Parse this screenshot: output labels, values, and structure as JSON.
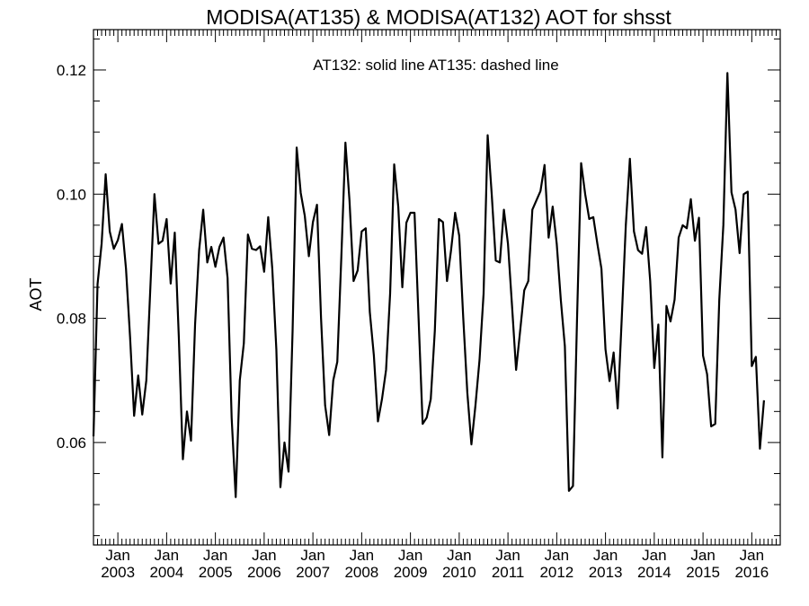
{
  "chart_data": {
    "type": "line",
    "title": "MODISA(AT135) & MODISA(AT132)  AOT for shsst",
    "annotation": "AT132: solid line   AT135: dashed line",
    "xlabel": "",
    "ylabel": "AOT",
    "xlim": [
      "2002-07",
      "2016-08"
    ],
    "ylim": [
      0.0435,
      0.1265
    ],
    "y_ticks": [
      0.06,
      0.08,
      0.1,
      0.12
    ],
    "y_tick_labels": [
      "0.06",
      "0.08",
      "0.10",
      "0.12"
    ],
    "x_tick_labels": [
      {
        "month": "Jan",
        "year": "2003"
      },
      {
        "month": "Jan",
        "year": "2004"
      },
      {
        "month": "Jan",
        "year": "2005"
      },
      {
        "month": "Jan",
        "year": "2006"
      },
      {
        "month": "Jan",
        "year": "2007"
      },
      {
        "month": "Jan",
        "year": "2008"
      },
      {
        "month": "Jan",
        "year": "2009"
      },
      {
        "month": "Jan",
        "year": "2010"
      },
      {
        "month": "Jan",
        "year": "2011"
      },
      {
        "month": "Jan",
        "year": "2012"
      },
      {
        "month": "Jan",
        "year": "2013"
      },
      {
        "month": "Jan",
        "year": "2014"
      },
      {
        "month": "Jan",
        "year": "2015"
      },
      {
        "month": "Jan",
        "year": "2016"
      }
    ],
    "grid": false,
    "series": [
      {
        "style": "solid",
        "color": "#000000",
        "start": "2002-07",
        "values": [
          0.061,
          0.0855,
          0.092,
          0.1032,
          0.094,
          0.0912,
          0.0926,
          0.0952,
          0.088,
          0.077,
          0.0643,
          0.0708,
          0.0645,
          0.07,
          0.085,
          0.1,
          0.092,
          0.0925,
          0.096,
          0.0856,
          0.0938,
          0.077,
          0.0573,
          0.065,
          0.0603,
          0.079,
          0.091,
          0.0975,
          0.089,
          0.0915,
          0.0883,
          0.0915,
          0.093,
          0.0865,
          0.064,
          0.0512,
          0.07,
          0.076,
          0.0935,
          0.0912,
          0.091,
          0.0916,
          0.0875,
          0.0963,
          0.088,
          0.075,
          0.0528,
          0.06,
          0.0553,
          0.078,
          0.1075,
          0.1002,
          0.0965,
          0.09,
          0.0955,
          0.0983,
          0.08,
          0.066,
          0.0612,
          0.07,
          0.073,
          0.09,
          0.1083,
          0.099,
          0.086,
          0.0877,
          0.094,
          0.0945,
          0.081,
          0.074,
          0.0634,
          0.067,
          0.0717,
          0.084,
          0.1048,
          0.098,
          0.085,
          0.0954,
          0.097,
          0.097,
          0.08,
          0.063,
          0.064,
          0.067,
          0.078,
          0.096,
          0.0955,
          0.086,
          0.091,
          0.097,
          0.0933,
          0.08,
          0.068,
          0.0597,
          0.066,
          0.0733,
          0.084,
          0.1095,
          0.1,
          0.0893,
          0.089,
          0.0975,
          0.092,
          0.082,
          0.0717,
          0.078,
          0.0845,
          0.086,
          0.0975,
          0.099,
          0.1005,
          0.1047,
          0.093,
          0.098,
          0.092,
          0.083,
          0.0755,
          0.0522,
          0.053,
          0.08,
          0.105,
          0.1,
          0.096,
          0.0963,
          0.092,
          0.088,
          0.075,
          0.0699,
          0.0745,
          0.0655,
          0.08,
          0.095,
          0.1057,
          0.094,
          0.091,
          0.0904,
          0.0947,
          0.086,
          0.072,
          0.079,
          0.0576,
          0.082,
          0.0795,
          0.083,
          0.093,
          0.095,
          0.0945,
          0.0992,
          0.0925,
          0.0962,
          0.074,
          0.071,
          0.0626,
          0.063,
          0.083,
          0.095,
          0.1195,
          0.1003,
          0.0975,
          0.0905,
          0.1,
          0.1004,
          0.0723,
          0.0738,
          0.059,
          0.0668
        ]
      }
    ]
  }
}
